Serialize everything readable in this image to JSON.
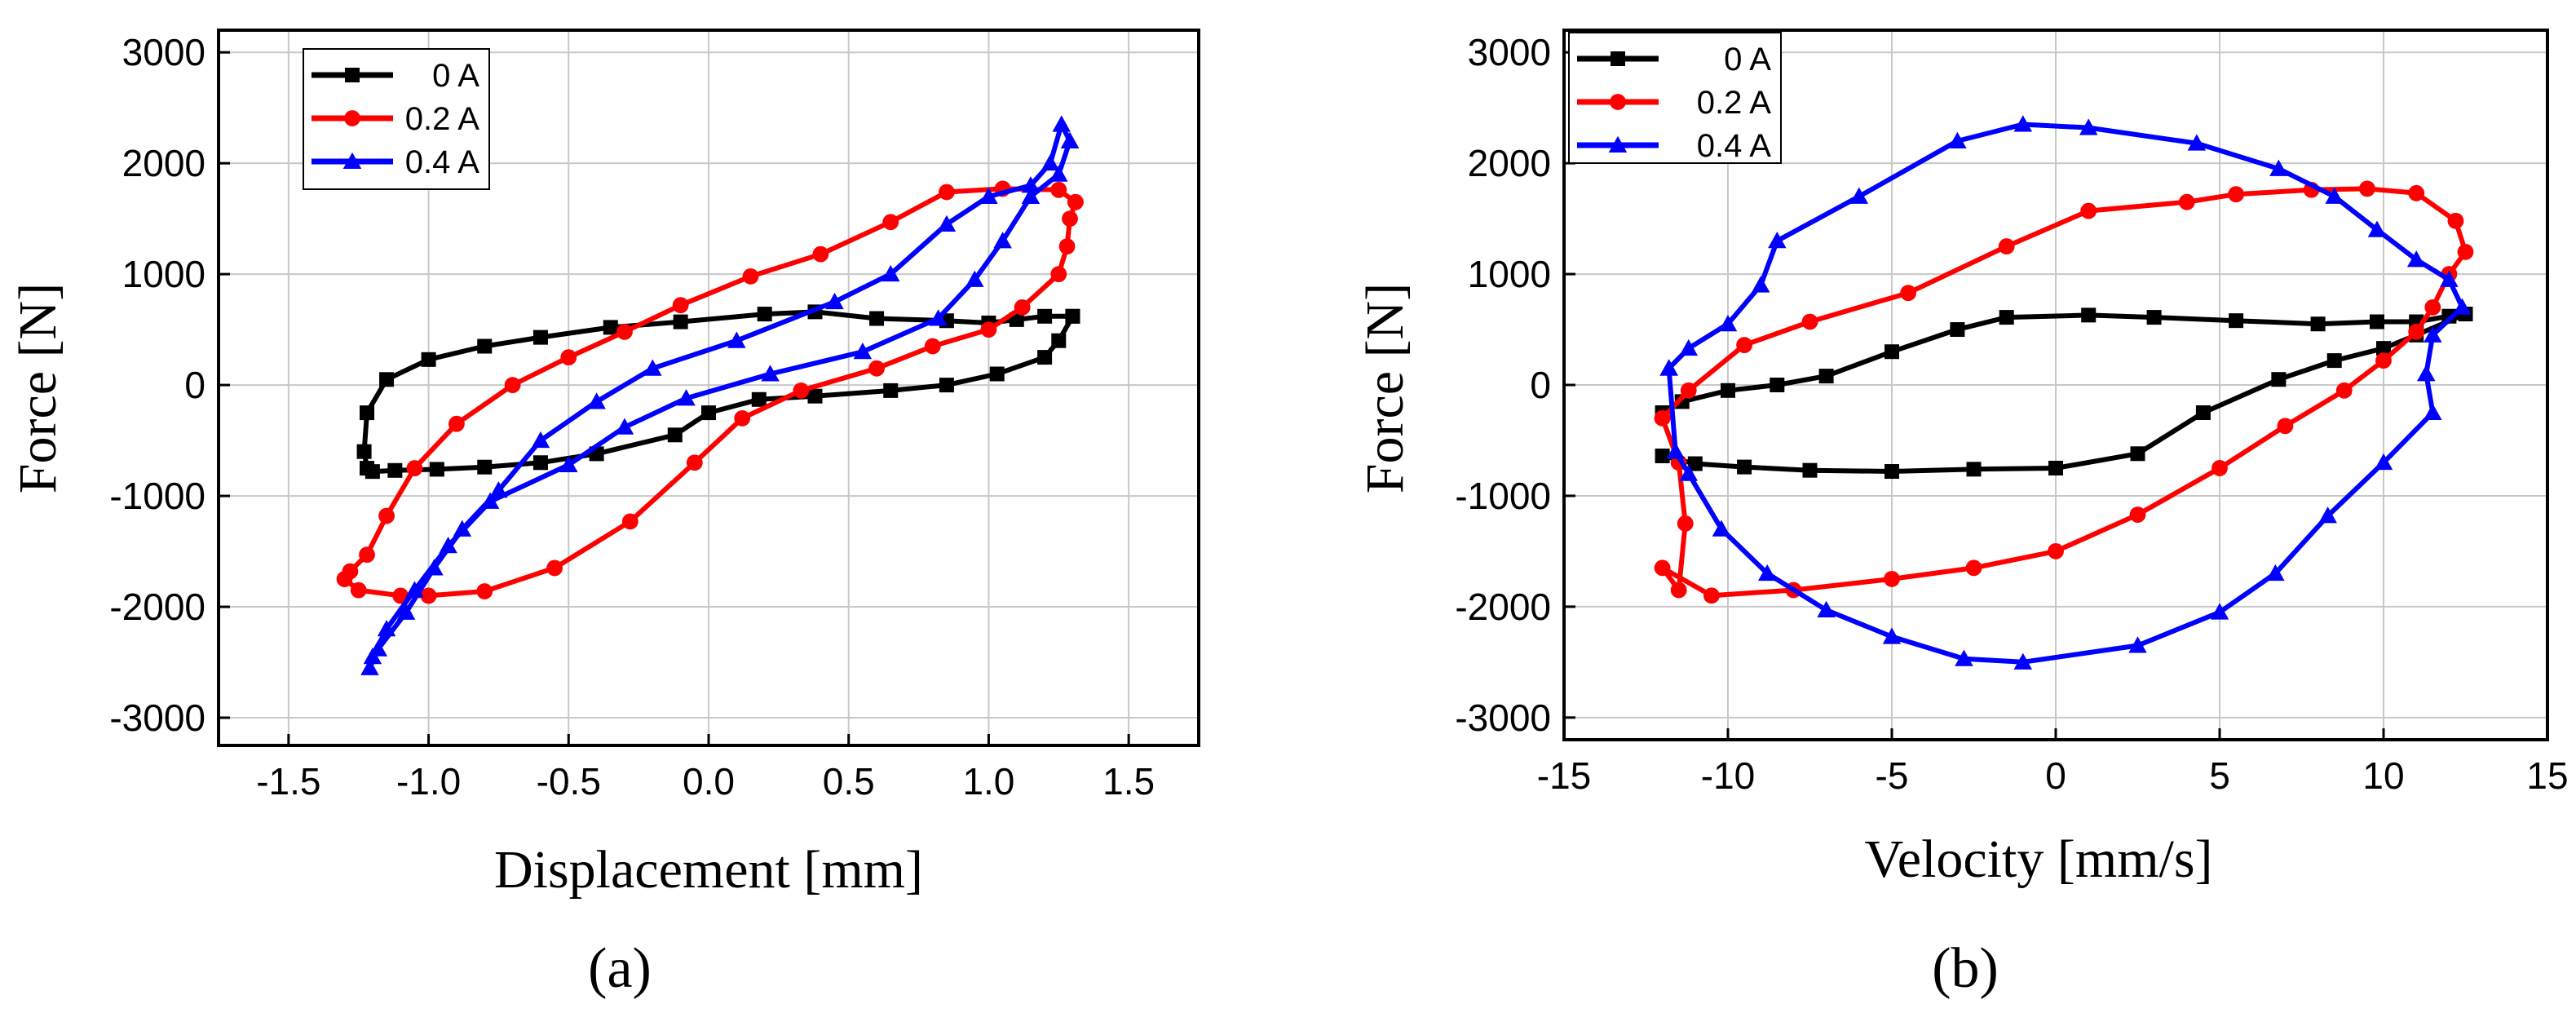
{
  "panels": [
    "(a)",
    "(b)"
  ],
  "chart_data": [
    {
      "type": "line",
      "panel_label": "(a)",
      "xlabel": "Displacement [mm]",
      "ylabel": "Force [N]",
      "xlim": [
        -1.75,
        1.75
      ],
      "ylim": [
        -3250,
        3200
      ],
      "xticks": [
        -1.5,
        -1.0,
        -0.5,
        0.0,
        0.5,
        1.0,
        1.5
      ],
      "xtick_labels": [
        "-1.5",
        "-1.0",
        "-0.5",
        "0.0",
        "0.5",
        "1.0",
        "1.5"
      ],
      "yticks": [
        -3000,
        -2000,
        -1000,
        0,
        1000,
        2000,
        3000
      ],
      "ytick_labels": [
        "-3000",
        "-2000",
        "-1000",
        "0",
        "1000",
        "2000",
        "3000"
      ],
      "grid": true,
      "legend_position": "top-left",
      "series": [
        {
          "name": "0 A",
          "color": "#000000",
          "marker": "square",
          "x": [
            1.3,
            1.25,
            1.2,
            1.03,
            0.85,
            0.65,
            0.38,
            0.18,
            0.0,
            -0.12,
            -0.4,
            -0.6,
            -0.8,
            -0.97,
            -1.12,
            -1.2,
            -1.22,
            -1.23,
            -1.22,
            -1.15,
            -1.0,
            -0.8,
            -0.6,
            -0.35,
            -0.1,
            0.2,
            0.38,
            0.6,
            0.85,
            1.0,
            1.1,
            1.2,
            1.3
          ],
          "y": [
            620,
            400,
            250,
            100,
            0,
            -50,
            -100,
            -130,
            -250,
            -450,
            -620,
            -700,
            -740,
            -760,
            -770,
            -780,
            -750,
            -600,
            -250,
            50,
            230,
            350,
            430,
            520,
            570,
            640,
            660,
            600,
            580,
            560,
            590,
            620,
            620
          ]
        },
        {
          "name": "0.2 A",
          "color": "#ff0000",
          "marker": "circle",
          "x": [
            1.31,
            1.29,
            1.28,
            1.25,
            1.12,
            1.0,
            0.8,
            0.6,
            0.33,
            0.12,
            -0.05,
            -0.28,
            -0.55,
            -0.8,
            -1.0,
            -1.1,
            -1.25,
            -1.3,
            -1.28,
            -1.22,
            -1.15,
            -1.05,
            -0.9,
            -0.7,
            -0.5,
            -0.3,
            -0.1,
            0.15,
            0.4,
            0.65,
            0.85,
            1.05,
            1.25,
            1.31
          ],
          "y": [
            1650,
            1500,
            1250,
            1000,
            700,
            500,
            350,
            150,
            -50,
            -300,
            -700,
            -1230,
            -1650,
            -1860,
            -1900,
            -1900,
            -1850,
            -1750,
            -1680,
            -1530,
            -1180,
            -750,
            -350,
            0,
            250,
            480,
            720,
            980,
            1180,
            1470,
            1740,
            1770,
            1760,
            1650
          ]
        },
        {
          "name": "0.4 A",
          "color": "#0000ff",
          "marker": "triangle",
          "x": [
            1.29,
            1.25,
            1.15,
            1.05,
            0.95,
            0.82,
            0.55,
            0.22,
            -0.08,
            -0.3,
            -0.5,
            -0.78,
            -0.93,
            -1.05,
            -1.15,
            -1.2,
            -1.21,
            -1.18,
            -1.08,
            -0.98,
            -0.88,
            -0.75,
            -0.6,
            -0.4,
            -0.2,
            0.1,
            0.45,
            0.65,
            0.85,
            1.0,
            1.15,
            1.22,
            1.26,
            1.29
          ],
          "y": [
            2200,
            1900,
            1700,
            1300,
            950,
            600,
            300,
            100,
            -120,
            -380,
            -720,
            -1050,
            -1450,
            -1850,
            -2200,
            -2450,
            -2550,
            -2380,
            -2050,
            -1650,
            -1300,
            -950,
            -500,
            -150,
            150,
            400,
            750,
            1000,
            1450,
            1700,
            1800,
            2000,
            2350,
            2200
          ]
        }
      ]
    },
    {
      "type": "line",
      "panel_label": "(b)",
      "xlabel": "Velocity [mm/s]",
      "ylabel": "Force [N]",
      "xlim": [
        -15,
        15
      ],
      "ylim": [
        -3200,
        3200
      ],
      "xticks": [
        -15,
        -10,
        -5,
        0,
        5,
        10,
        15
      ],
      "xtick_labels": [
        "-15",
        "-10",
        "-5",
        "0",
        "5",
        "10",
        "15"
      ],
      "yticks": [
        -3000,
        -2000,
        -1000,
        0,
        1000,
        2000,
        3000
      ],
      "ytick_labels": [
        "-3000",
        "-2000",
        "-1000",
        "0",
        "1000",
        "2000",
        "3000"
      ],
      "grid": true,
      "legend_position": "top-left",
      "series": [
        {
          "name": "0 A",
          "color": "#000000",
          "marker": "square",
          "x": [
            -12.0,
            -11.4,
            -10.0,
            -8.5,
            -7.0,
            -5.0,
            -3.0,
            -1.5,
            1.0,
            3.0,
            5.5,
            8.0,
            9.8,
            11.0,
            12.0,
            12.5,
            11.0,
            10.0,
            8.5,
            6.8,
            4.5,
            2.5,
            0.0,
            -2.5,
            -5.0,
            -7.5,
            -9.5,
            -11.0,
            -12.0
          ],
          "y": [
            -250,
            -150,
            -50,
            0,
            80,
            300,
            500,
            610,
            630,
            610,
            580,
            550,
            570,
            570,
            620,
            640,
            450,
            330,
            220,
            50,
            -250,
            -620,
            -750,
            -760,
            -780,
            -770,
            -740,
            -710,
            -640
          ]
        },
        {
          "name": "0.2 A",
          "color": "#ff0000",
          "marker": "circle",
          "x": [
            -12.0,
            -11.5,
            -11.3,
            -11.5,
            -12.0,
            -10.5,
            -8.0,
            -5.0,
            -2.5,
            0.0,
            2.5,
            5.0,
            7.0,
            8.8,
            10.0,
            11.0,
            11.5,
            12.0,
            12.5,
            12.2,
            11.0,
            9.5,
            7.8,
            5.5,
            4.0,
            1.0,
            -1.5,
            -4.5,
            -7.5,
            -9.5,
            -11.2,
            -12.0
          ],
          "y": [
            -300,
            -700,
            -1250,
            -1850,
            -1650,
            -1900,
            -1850,
            -1750,
            -1650,
            -1500,
            -1170,
            -750,
            -370,
            -50,
            220,
            480,
            700,
            1000,
            1200,
            1480,
            1730,
            1770,
            1760,
            1720,
            1650,
            1570,
            1250,
            830,
            570,
            360,
            -50,
            -300
          ]
        },
        {
          "name": "0.4 A",
          "color": "#0000ff",
          "marker": "triangle",
          "x": [
            -11.8,
            -11.2,
            -10.0,
            -9.0,
            -8.5,
            -6.0,
            -3.0,
            -1.0,
            1.0,
            4.3,
            6.8,
            8.5,
            9.8,
            11.0,
            12.0,
            12.4,
            11.5,
            11.3,
            11.5,
            10.0,
            8.3,
            6.7,
            5.0,
            2.5,
            -1.0,
            -2.8,
            -5.0,
            -7.0,
            -8.8,
            -10.2,
            -11.2,
            -11.6,
            -11.8
          ],
          "y": [
            150,
            330,
            550,
            900,
            1300,
            1700,
            2200,
            2350,
            2320,
            2180,
            1950,
            1700,
            1400,
            1130,
            950,
            700,
            450,
            100,
            -250,
            -700,
            -1180,
            -1700,
            -2050,
            -2350,
            -2500,
            -2470,
            -2270,
            -2030,
            -1700,
            -1300,
            -800,
            -600,
            150
          ]
        }
      ]
    }
  ]
}
